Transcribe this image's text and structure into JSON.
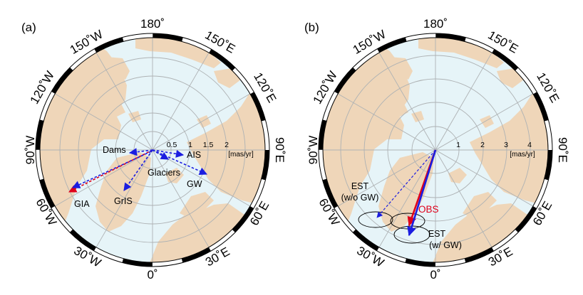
{
  "colors": {
    "ocean": "#e6f4f8",
    "land": "#efd6b9",
    "grid": "#aeb2b4",
    "frame": "#000000",
    "red": "#e0001a",
    "blue": "#1b1de0"
  },
  "panel_a": {
    "label": "(a)",
    "lon_labels": [
      "180˚",
      "150˚E",
      "120˚E",
      "90˚E",
      "60˚E",
      "30˚E",
      "0˚",
      "30˚W",
      "60˚W",
      "90˚W",
      "120˚W",
      "150˚W"
    ],
    "ring_labels": [
      "0.5",
      "1",
      "1.5",
      "2"
    ],
    "unit": "[mas/yr]",
    "vectors": {
      "dams": "Dams",
      "ais": "AIS",
      "glaciers": "Glaciers",
      "gw": "GW",
      "gris": "GrIS",
      "gia": "GIA"
    }
  },
  "panel_b": {
    "label": "(b)",
    "lon_labels": [
      "180˚",
      "150˚E",
      "120˚E",
      "90˚E",
      "60˚E",
      "30˚E",
      "0˚",
      "30˚W",
      "60˚W",
      "90˚W",
      "120˚W",
      "150˚W"
    ],
    "ring_labels": [
      "1",
      "2",
      "3",
      "4"
    ],
    "unit": "[mas/yr]",
    "vectors": {
      "obs": "OBS",
      "est_wo_line1": "EST",
      "est_wo_line2": "(w/o GW)",
      "est_w_line1": "EST",
      "est_w_line2": "(w/ GW)"
    }
  }
}
